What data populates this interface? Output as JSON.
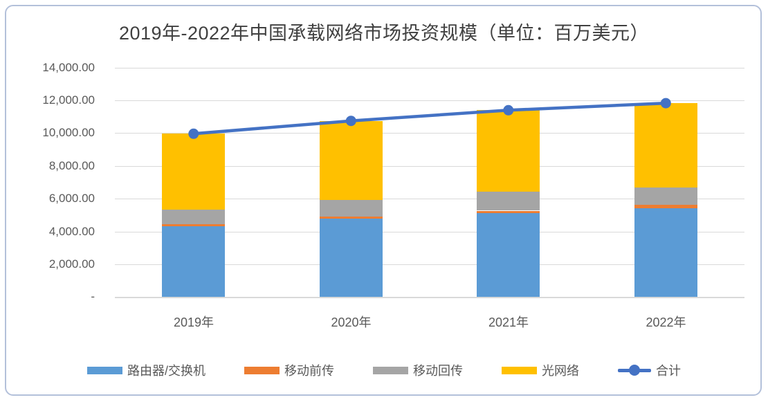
{
  "page": {
    "background": "#ffffff",
    "border_color": "#b3c0da",
    "text_color": "#595959",
    "title_color": "#404040",
    "gridline_color": "#d9d9d9"
  },
  "chart_data": {
    "type": "bar",
    "subtype": "stacked-bars-with-total-line",
    "title": "2019年-2022年中国承载网络市场投资规模（单位：百万美元）",
    "categories": [
      "2019年",
      "2020年",
      "2021年",
      "2022年"
    ],
    "series": [
      {
        "name": "路由器/交换机",
        "type": "bar",
        "color": "#5B9BD5",
        "values": [
          4320,
          4790,
          5140,
          5410
        ]
      },
      {
        "name": "移动前传",
        "type": "bar",
        "color": "#ED7D31",
        "values": [
          140,
          120,
          130,
          200
        ]
      },
      {
        "name": "移动回传",
        "type": "bar",
        "color": "#A5A5A5",
        "values": [
          880,
          1000,
          1150,
          1090
        ]
      },
      {
        "name": "光网络",
        "type": "bar",
        "color": "#FFC000",
        "values": [
          4625,
          4840,
          4980,
          5130
        ]
      },
      {
        "name": "合计",
        "type": "line",
        "color": "#4472C4",
        "values": [
          9965,
          10750,
          11400,
          11830
        ]
      }
    ],
    "ylim": [
      0,
      14000
    ],
    "ytick_interval": 2000,
    "y_tick_labels": [
      "-",
      "2,000.00",
      "4,000.00",
      "6,000.00",
      "8,000.00",
      "10,000.00",
      "12,000.00",
      "14,000.00"
    ],
    "grid": true,
    "legend_position": "bottom",
    "xlabel": "",
    "ylabel": ""
  }
}
